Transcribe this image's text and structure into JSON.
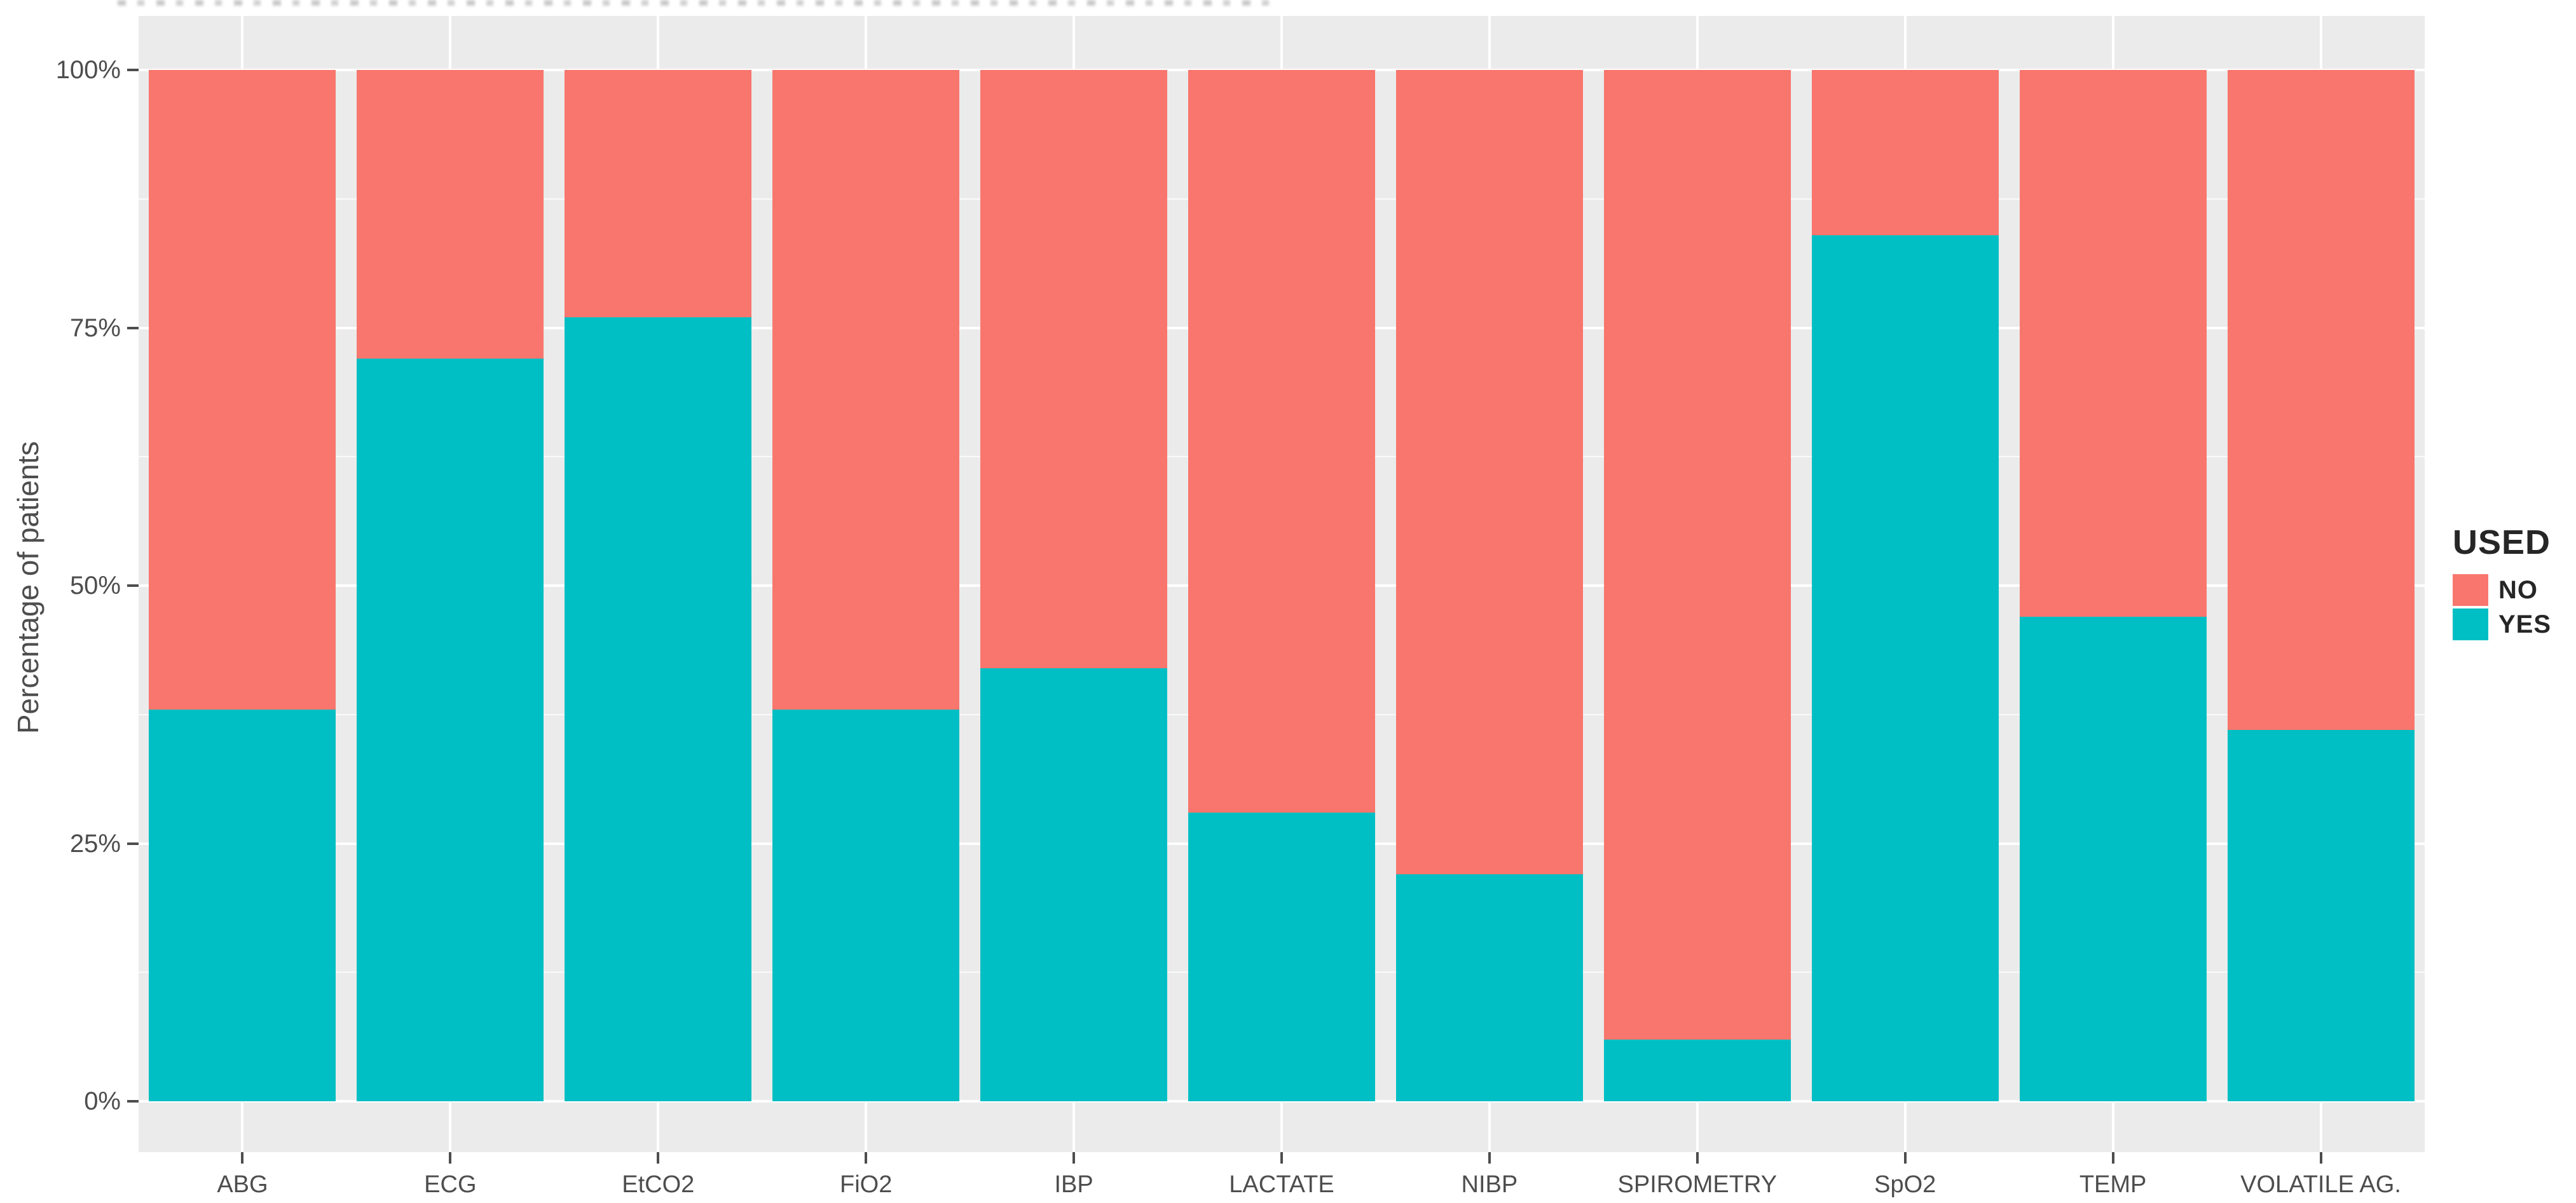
{
  "chart_data": {
    "type": "bar",
    "stacked": true,
    "orientation": "vertical",
    "title": "",
    "xlabel": "",
    "ylabel": "Percentage of patients",
    "ylim": [
      0,
      100
    ],
    "ytick_labels": [
      "0%",
      "25%",
      "50%",
      "75%",
      "100%"
    ],
    "ytick_values": [
      0,
      25,
      50,
      75,
      100
    ],
    "yminor_values": [
      12.5,
      37.5,
      62.5,
      87.5
    ],
    "grid": "on",
    "panel_bg": "#EBEBEB",
    "gridline_color": "#FFFFFF",
    "axis_text_color": "#4d4d4d",
    "categories": [
      "ABG",
      "ECG",
      "EtCO2",
      "FiO2",
      "IBP",
      "LACTATE",
      "NIBP",
      "SPIROMETRY",
      "SpO2",
      "TEMP",
      "VOLATILE AG."
    ],
    "series": [
      {
        "name": "YES",
        "color": "#00BFC4",
        "values": [
          38,
          72,
          76,
          38,
          42,
          28,
          22,
          6,
          84,
          47,
          36
        ]
      },
      {
        "name": "NO",
        "color": "#F8766D",
        "values": [
          62,
          28,
          24,
          62,
          58,
          72,
          78,
          94,
          16,
          53,
          64
        ]
      }
    ],
    "legend": {
      "title": "USED",
      "position": "right",
      "entries": [
        {
          "label": "NO",
          "color": "#F8766D"
        },
        {
          "label": "YES",
          "color": "#00BFC4"
        }
      ]
    }
  }
}
